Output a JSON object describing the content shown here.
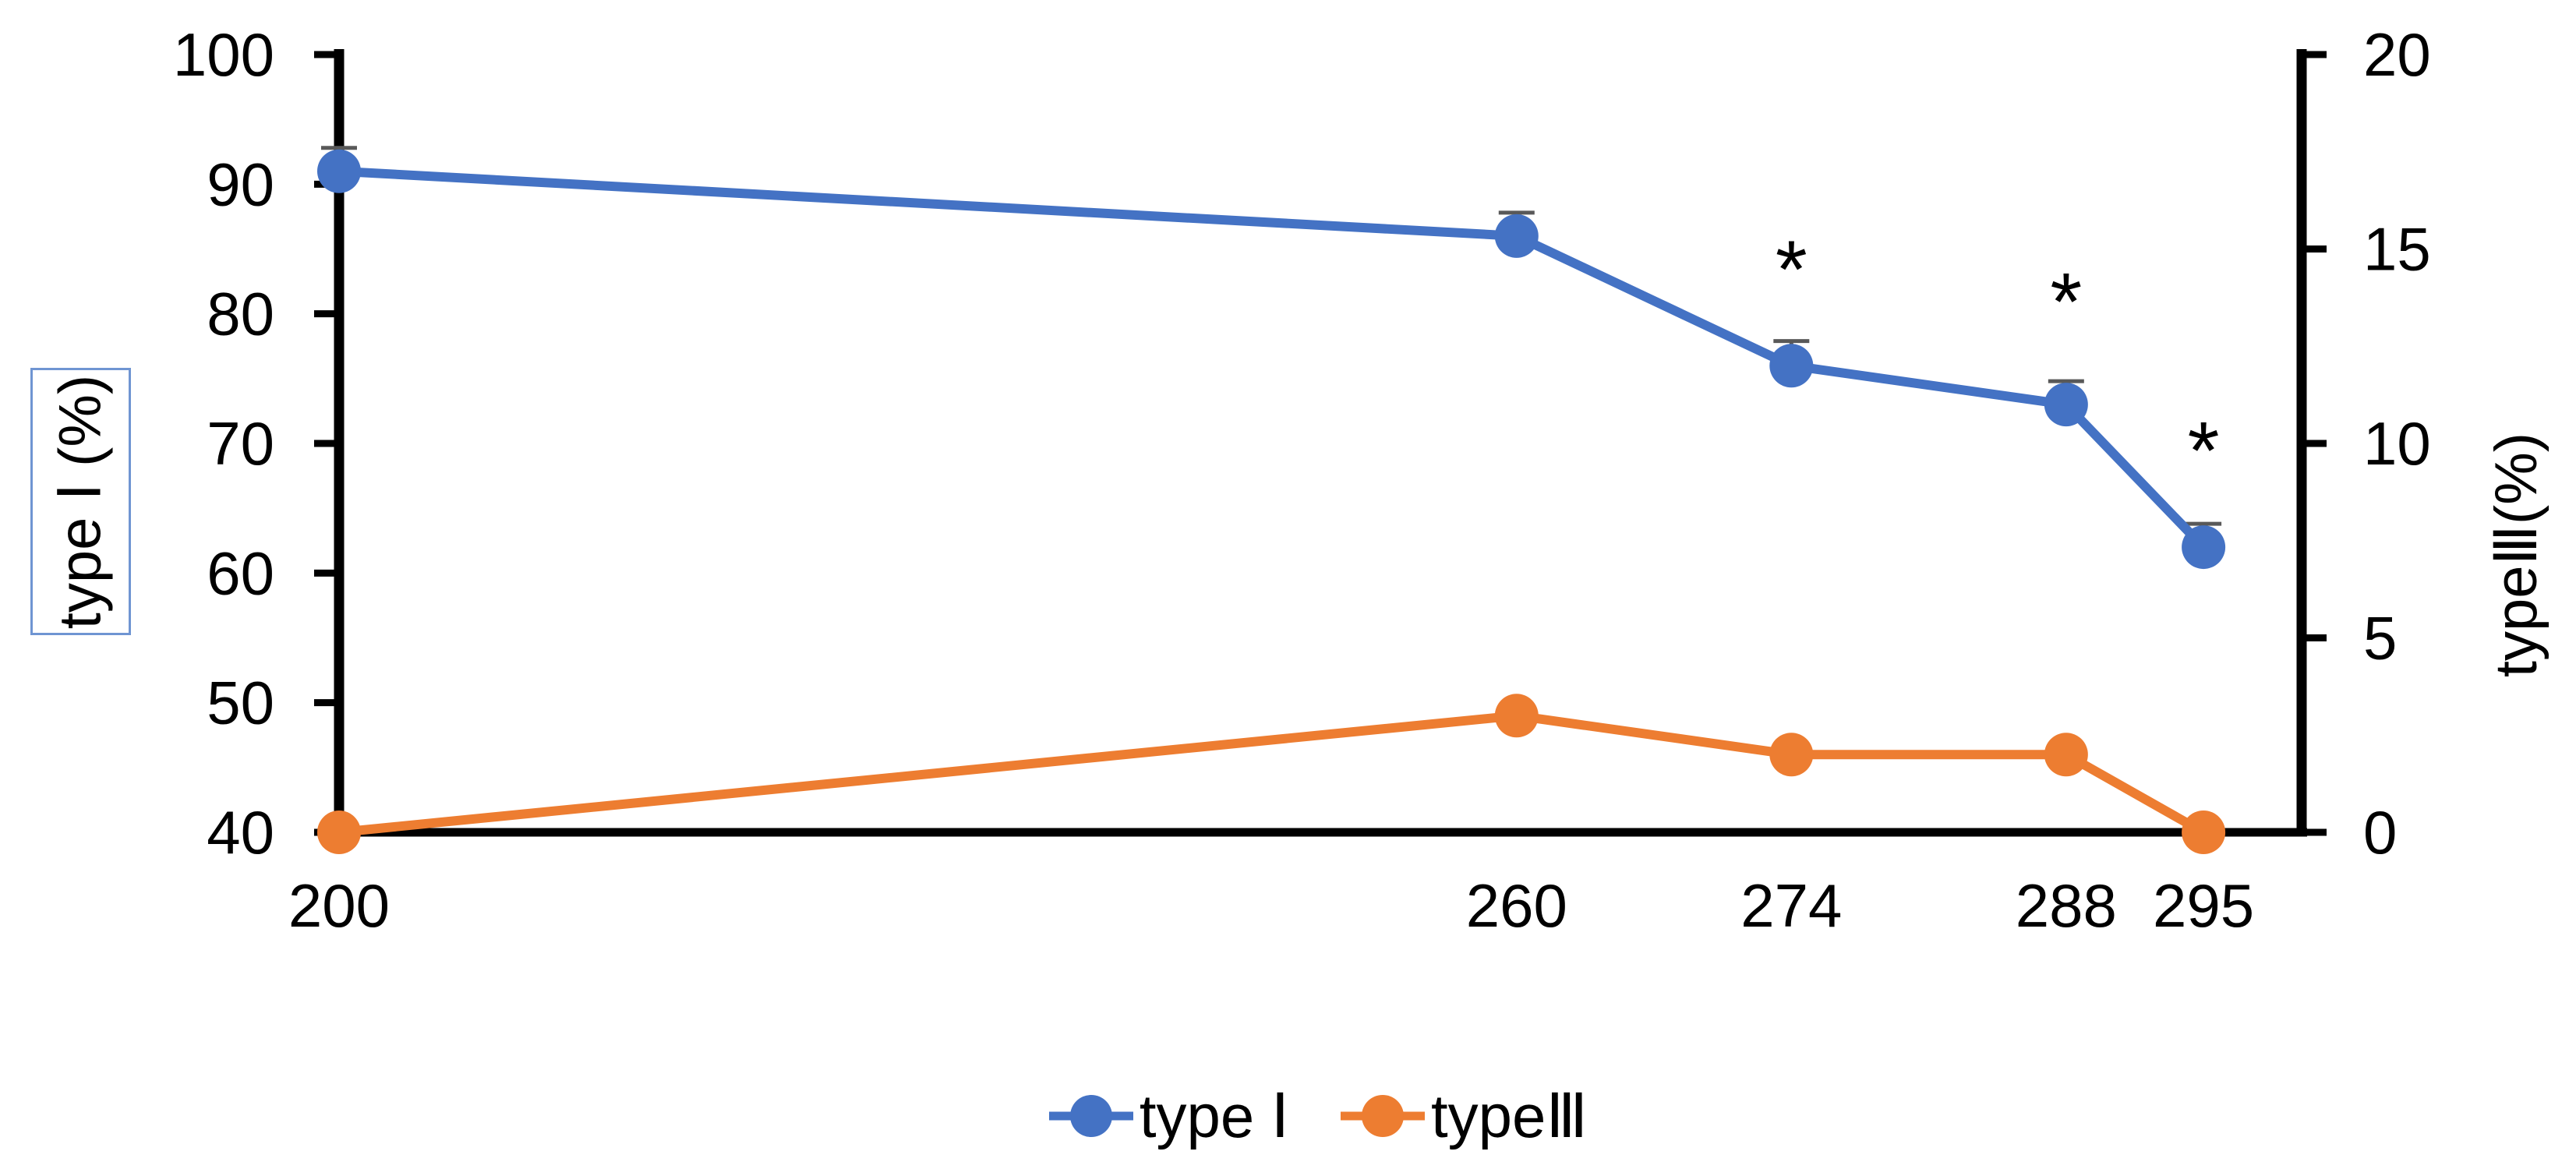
{
  "chart_data": {
    "type": "line",
    "title": "",
    "x": [
      200,
      260,
      274,
      288,
      295
    ],
    "x_axis": {
      "min": 200,
      "max": 300,
      "ticks": [
        200,
        260,
        274,
        288,
        295
      ]
    },
    "left_axis": {
      "label": "type Ⅰ (%)",
      "min": 40,
      "max": 100,
      "ticks": [
        100,
        90,
        80,
        70,
        60,
        50,
        40
      ],
      "box_border_color": "#6F95D2"
    },
    "right_axis": {
      "label": "typeⅢ(%)",
      "min": 0,
      "max": 20,
      "ticks": [
        20,
        15,
        10,
        5,
        0
      ]
    },
    "series": [
      {
        "name": "type Ⅰ",
        "axis": "left",
        "color": "#4472C4",
        "values": [
          91,
          86,
          76,
          73,
          62
        ],
        "error_up": [
          1.8,
          1.8,
          1.9,
          1.8,
          1.8
        ]
      },
      {
        "name": "typeⅢ",
        "axis": "right",
        "color": "#ED7D31",
        "values": [
          0,
          3,
          2,
          2,
          0
        ]
      }
    ],
    "annotations": [
      {
        "text": "*",
        "x": 274,
        "y_left": 84.5
      },
      {
        "text": "*",
        "x": 288,
        "y_left": 82
      },
      {
        "text": "*",
        "x": 295,
        "y_left": 70.5
      }
    ],
    "legend": [
      {
        "label": "type Ⅰ",
        "color": "#4472C4"
      },
      {
        "label": "typeⅢ",
        "color": "#ED7D31"
      }
    ],
    "legend_position": "bottom-center",
    "grid": false,
    "axis_color": "#000000",
    "error_bar_color": "#595959"
  }
}
